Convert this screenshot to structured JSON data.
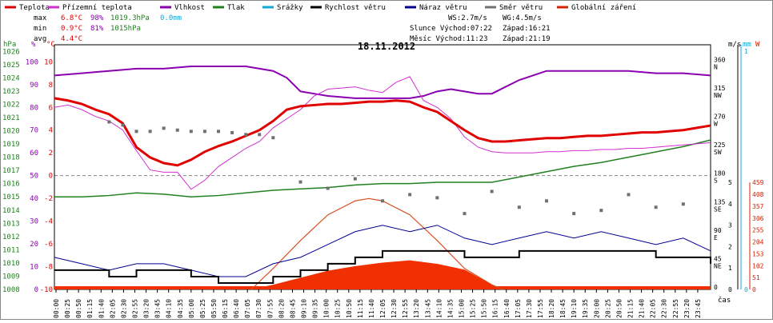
{
  "chart_data": {
    "type": "line",
    "title": "18.11.2012",
    "xlabel": "čas",
    "legend": [
      {
        "name": "Teplota",
        "color": "#e00000"
      },
      {
        "name": "Přízemní teplota",
        "color": "#d030d0"
      },
      {
        "name": "Vlhkost",
        "color": "#8a00b0"
      },
      {
        "name": "Tlak",
        "color": "#208020"
      },
      {
        "name": "Srážky",
        "color": "#10a8d8"
      },
      {
        "name": "Rychlost větru",
        "color": "#000000"
      },
      {
        "name": "Náraz větru",
        "color": "#000090"
      },
      {
        "name": "Směr větru",
        "color": "#707070"
      },
      {
        "name": "Globální záření",
        "color": "#d82000"
      }
    ],
    "stats": {
      "max_label": "max",
      "max_temp": "6.8°C",
      "max_hum": "98%",
      "max_press": "1019.3hPa",
      "max_rain": "0.0mm",
      "min_label": "min",
      "min_temp": "0.9°C",
      "min_hum": "81%",
      "min_press": "1015hPa",
      "avg_label": "avg",
      "avg_temp": "4.4°C"
    },
    "info": {
      "ws": "WS:2.7m/s",
      "wg": "WG:4.5m/s",
      "sun_rise": "Slunce Východ:07:22",
      "sun_set": "Západ:16:21",
      "moon_rise": "Měsíc  Východ:11:23",
      "moon_set": "Západ:21:19"
    },
    "axes": {
      "hpa_label": "hPa",
      "pct_label": "%",
      "temp_label": "°C",
      "ms_label": "m/s",
      "mm_label": "mm",
      "w_label": "W",
      "hpa_ticks": [
        "1026",
        "1025",
        "1024",
        "1023",
        "1022",
        "1021",
        "1020",
        "1019",
        "1018",
        "1017",
        "1016",
        "1015",
        "1014",
        "1013",
        "1012",
        "1011",
        "1010",
        "1009",
        "1008"
      ],
      "pct_ticks": [
        "100",
        "90",
        "80",
        "70",
        "60",
        "50",
        "40",
        "30",
        "20",
        "10",
        "0"
      ],
      "temp_ticks": [
        "10",
        "8",
        "6",
        "4",
        "2",
        "0",
        "-2",
        "-4",
        "-6",
        "-8",
        "-10"
      ],
      "dir_ticks": [
        {
          "deg": "360",
          "name": "N"
        },
        {
          "deg": "315",
          "name": "NW"
        },
        {
          "deg": "270",
          "name": "W"
        },
        {
          "deg": "225",
          "name": "SW"
        },
        {
          "deg": "180",
          "name": "S"
        },
        {
          "deg": "135",
          "name": "SE"
        },
        {
          "deg": "90",
          "name": "E"
        },
        {
          "deg": "45",
          "name": "NE"
        },
        {
          "deg": "0",
          "name": ""
        }
      ],
      "ms_ticks": [
        "5",
        "4",
        "3",
        "2",
        "1",
        "0"
      ],
      "mm_ticks": [
        "1",
        "0"
      ],
      "w_ticks": [
        "459",
        "408",
        "357",
        "306",
        "255",
        "204",
        "153",
        "102",
        "51",
        "0"
      ],
      "x_ticks": [
        "00:00",
        "00:25",
        "00:50",
        "01:15",
        "01:40",
        "02:05",
        "02:30",
        "02:55",
        "03:20",
        "03:45",
        "04:10",
        "04:35",
        "05:00",
        "05:25",
        "05:50",
        "06:15",
        "06:40",
        "07:05",
        "07:30",
        "07:55",
        "08:20",
        "08:45",
        "09:10",
        "09:35",
        "10:00",
        "10:25",
        "10:50",
        "11:15",
        "11:40",
        "12:05",
        "12:30",
        "12:55",
        "13:20",
        "13:45",
        "14:10",
        "14:35",
        "15:00",
        "15:25",
        "15:50",
        "16:15",
        "16:40",
        "17:05",
        "17:30",
        "17:55",
        "18:20",
        "18:45",
        "19:10",
        "19:35",
        "20:00",
        "20:25",
        "20:50",
        "21:15",
        "21:40",
        "22:05",
        "22:30",
        "22:55",
        "23:20",
        "23:45"
      ]
    },
    "temp_range": [
      -10,
      11.5
    ],
    "series": {
      "temperature": {
        "x_hours": [
          0,
          0.5,
          1,
          1.5,
          2,
          2.5,
          3,
          3.5,
          4,
          4.5,
          5,
          5.5,
          6,
          6.5,
          7,
          7.5,
          8,
          8.5,
          9,
          9.5,
          10,
          10.5,
          11,
          11.5,
          12,
          12.5,
          13,
          13.5,
          14,
          14.5,
          15,
          15.5,
          16,
          16.5,
          17,
          17.5,
          18,
          18.5,
          19,
          19.5,
          20,
          20.5,
          21,
          21.5,
          22,
          22.5,
          23,
          23.5,
          24
        ],
        "y_celsius": [
          6.8,
          6.6,
          6.3,
          5.8,
          5.4,
          4.6,
          2.5,
          1.6,
          1.1,
          0.9,
          1.4,
          2.1,
          2.6,
          3.0,
          3.5,
          4.0,
          4.8,
          5.8,
          6.1,
          6.2,
          6.3,
          6.3,
          6.4,
          6.5,
          6.5,
          6.6,
          6.5,
          6.0,
          5.6,
          4.8,
          4.0,
          3.3,
          3.0,
          3.0,
          3.1,
          3.2,
          3.3,
          3.3,
          3.4,
          3.5,
          3.5,
          3.6,
          3.7,
          3.8,
          3.8,
          3.9,
          4.0,
          4.2,
          4.4
        ]
      },
      "ground_temperature": {
        "x_hours": [
          0,
          0.5,
          1,
          1.5,
          2,
          2.5,
          3,
          3.5,
          4,
          4.5,
          5,
          5.5,
          6,
          6.5,
          7,
          7.5,
          8,
          8.5,
          9,
          9.5,
          10,
          10.5,
          11,
          11.5,
          12,
          12.5,
          13,
          13.5,
          14,
          14.5,
          15,
          15.5,
          16,
          16.5,
          17,
          17.5,
          18,
          18.5,
          19,
          19.5,
          20,
          20.5,
          21,
          21.5,
          22,
          22.5,
          23,
          23.5,
          24
        ],
        "y_celsius": [
          6.0,
          6.2,
          5.8,
          5.2,
          4.8,
          4.0,
          2.2,
          0.5,
          0.3,
          0.3,
          -1.2,
          -0.4,
          0.8,
          1.6,
          2.4,
          3.0,
          4.2,
          5.0,
          5.8,
          7.0,
          7.6,
          7.7,
          7.8,
          7.5,
          7.3,
          8.2,
          8.7,
          6.6,
          6.0,
          5.0,
          3.4,
          2.5,
          2.1,
          2.0,
          2.0,
          2.0,
          2.1,
          2.1,
          2.2,
          2.2,
          2.3,
          2.3,
          2.4,
          2.4,
          2.5,
          2.6,
          2.7,
          2.8,
          2.9
        ]
      },
      "humidity": {
        "x_hours": [
          0,
          1,
          2,
          3,
          4,
          5,
          6,
          7,
          7.5,
          8,
          8.5,
          9,
          9.5,
          10,
          11,
          12,
          13,
          13.5,
          14,
          14.5,
          15,
          15.5,
          16,
          17,
          18,
          19,
          20,
          21,
          22,
          23,
          24
        ],
        "y_percent": [
          94,
          95,
          96,
          97,
          97,
          98,
          98,
          98,
          97,
          96,
          93,
          87,
          86,
          85,
          84,
          84,
          84,
          85,
          87,
          88,
          87,
          86,
          86,
          92,
          96,
          96,
          96,
          96,
          95,
          95,
          94
        ]
      },
      "pressure": {
        "x_hours": [
          0,
          1,
          2,
          3,
          4,
          5,
          6,
          7,
          8,
          9,
          10,
          11,
          12,
          13,
          14,
          15,
          16,
          17,
          18,
          19,
          20,
          21,
          22,
          23,
          24
        ],
        "y_hpa": [
          1015.0,
          1015.0,
          1015.1,
          1015.3,
          1015.2,
          1015.0,
          1015.1,
          1015.3,
          1015.5,
          1015.6,
          1015.7,
          1015.9,
          1016.0,
          1016.0,
          1016.1,
          1016.1,
          1016.1,
          1016.5,
          1016.9,
          1017.3,
          1017.6,
          1018.0,
          1018.4,
          1018.8,
          1019.3
        ]
      },
      "wind_speed_ms": {
        "note": "",
        "x_hours": [
          0,
          1,
          2,
          3,
          4,
          5,
          6,
          7,
          8,
          9,
          10,
          11,
          12,
          13,
          14,
          15,
          16,
          17,
          18,
          19,
          20,
          21,
          22,
          23,
          24
        ],
        "y_ms": [
          0.9,
          0.9,
          0.6,
          0.9,
          0.9,
          0.6,
          0.3,
          0.3,
          0.6,
          0.9,
          1.2,
          1.5,
          1.8,
          1.8,
          1.8,
          1.5,
          1.5,
          1.8,
          1.8,
          1.8,
          1.8,
          1.8,
          1.5,
          1.5,
          1.2
        ]
      },
      "wind_gust_ms": {
        "x_hours": [
          0,
          1,
          2,
          3,
          4,
          5,
          6,
          7,
          8,
          9,
          10,
          11,
          12,
          13,
          14,
          15,
          16,
          17,
          18,
          19,
          20,
          21,
          22,
          23,
          24
        ],
        "y_ms": [
          1.5,
          1.2,
          0.9,
          1.2,
          1.2,
          0.9,
          0.6,
          0.6,
          1.2,
          1.5,
          2.1,
          2.7,
          3.0,
          2.7,
          3.0,
          2.4,
          2.1,
          2.4,
          2.7,
          2.4,
          2.7,
          2.4,
          2.1,
          2.4,
          1.8
        ]
      },
      "wind_direction_deg": {
        "x_hours": [
          2.0,
          2.5,
          3.0,
          3.5,
          4.0,
          4.5,
          5.0,
          5.5,
          6.0,
          6.5,
          7.0,
          7.5,
          8.0,
          9.0,
          10.0,
          11.0,
          12.0,
          13.0,
          14.0,
          15.0,
          16.0,
          17.0,
          18.0,
          19.0,
          20.0,
          21.0,
          22.0,
          23.0
        ],
        "y_deg": [
          265,
          260,
          250,
          250,
          255,
          252,
          250,
          250,
          250,
          248,
          245,
          245,
          240,
          170,
          160,
          175,
          140,
          150,
          145,
          120,
          155,
          130,
          140,
          120,
          125,
          150,
          130,
          135
        ]
      },
      "solar_radiation_wm2": {
        "x_hours": [
          7.2,
          8,
          9,
          10,
          11,
          12,
          13,
          14,
          15,
          16,
          16.4
        ],
        "y_wm2": [
          0,
          20,
          50,
          80,
          100,
          115,
          125,
          110,
          85,
          20,
          0
        ]
      },
      "solar_theoretical_wm2": {
        "x_hours": [
          7.2,
          8,
          9,
          10,
          11,
          11.5,
          12,
          13,
          14,
          15,
          16,
          16.4
        ],
        "y_wm2": [
          0,
          90,
          210,
          320,
          380,
          390,
          380,
          320,
          210,
          90,
          20,
          0
        ]
      }
    }
  }
}
